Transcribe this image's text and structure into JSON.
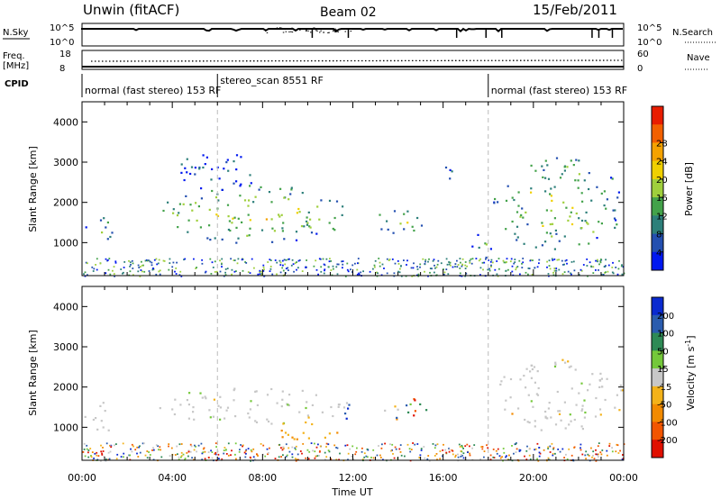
{
  "header": {
    "station": "Unwin (fitACF)",
    "beam": "Beam 02",
    "date": "15/Feb/2011"
  },
  "top_panels": {
    "nsky_label": "N.Sky",
    "nsky_ticks": [
      "10^5",
      "10^0"
    ],
    "nsearch_label": "N.Search",
    "nsearch_ticks": [
      "10^5",
      "10^0"
    ],
    "freq_label": "Freq.",
    "freq_unit": "[MHz]",
    "freq_ticks": [
      "18",
      "8"
    ],
    "nave_label": "Nave",
    "nave_ticks": [
      "60",
      "0"
    ],
    "cpid_label": "CPID",
    "cpid_segments": [
      {
        "label": "normal (fast stereo) 153 RF",
        "start_h": 0,
        "end_h": 6
      },
      {
        "label": "stereo_scan 8551 RF",
        "start_h": 6,
        "end_h": 18
      },
      {
        "label": "normal (fast stereo) 153 RF",
        "start_h": 18,
        "end_h": 24
      }
    ]
  },
  "time_axis": {
    "label": "Time UT",
    "ticks": [
      "00:00",
      "04:00",
      "08:00",
      "12:00",
      "16:00",
      "20:00",
      "00:00"
    ]
  },
  "chart_data": [
    {
      "type": "heatmap",
      "name": "power",
      "xlabel": "Time UT",
      "ylabel": "Slant Range [km]",
      "xlim_hours": [
        0,
        24
      ],
      "ylim_km": [
        180,
        4500
      ],
      "yticks": [
        "1000",
        "2000",
        "3000",
        "4000"
      ],
      "colorbar": {
        "label": "Power [dB]",
        "ticks": [
          "4",
          "8",
          "12",
          "16",
          "20",
          "24",
          "28"
        ],
        "colors": [
          "#0018f0",
          "#234fb0",
          "#2d7f7a",
          "#43a24a",
          "#9fcf3c",
          "#f0d000",
          "#f4a200",
          "#f26000",
          "#e81d00"
        ]
      },
      "regions": [
        {
          "t": [
            0.1,
            1.5
          ],
          "r": [
            900,
            1650
          ],
          "level": 0.45
        },
        {
          "t": [
            3.3,
            11.8
          ],
          "r": [
            1000,
            2450
          ],
          "level": 0.62
        },
        {
          "t": [
            4.2,
            8.0
          ],
          "r": [
            2300,
            3300
          ],
          "level": 0.2
        },
        {
          "t": [
            12.8,
            15.2
          ],
          "r": [
            1250,
            1850
          ],
          "level": 0.6
        },
        {
          "t": [
            15.2,
            16.4
          ],
          "r": [
            2500,
            3000
          ],
          "level": 0.2
        },
        {
          "t": [
            17.2,
            18.3
          ],
          "r": [
            600,
            1250
          ],
          "level": 0.35
        },
        {
          "t": [
            18.2,
            24.0
          ],
          "r": [
            800,
            3150
          ],
          "level": 0.58
        }
      ]
    },
    {
      "type": "heatmap",
      "name": "velocity",
      "xlabel": "Time UT",
      "ylabel": "Slant Range [km]",
      "xlim_hours": [
        0,
        24
      ],
      "ylim_km": [
        180,
        4500
      ],
      "yticks": [
        "1000",
        "2000",
        "3000",
        "4000"
      ],
      "colorbar": {
        "label": "Velocity [m s^-1]",
        "ticks": [
          "200",
          "100",
          "50",
          "15",
          "-15",
          "-50",
          "-100",
          "-200"
        ],
        "colors": [
          "#0a2ad0",
          "#2a5cae",
          "#2e8a55",
          "#74c83a",
          "#c7c7c7",
          "#f3b21a",
          "#f28a00",
          "#f25500",
          "#e01000"
        ]
      },
      "regions": [
        {
          "t": [
            0.1,
            1.5
          ],
          "r": [
            900,
            1650
          ],
          "class": "grey"
        },
        {
          "t": [
            3.3,
            11.8
          ],
          "r": [
            1100,
            2000
          ],
          "class": "grey"
        },
        {
          "t": [
            8.3,
            11.4
          ],
          "r": [
            700,
            1200
          ],
          "class": "orange"
        },
        {
          "t": [
            11.6,
            12.0
          ],
          "r": [
            1100,
            1900
          ],
          "class": "blue"
        },
        {
          "t": [
            13.0,
            15.3
          ],
          "r": [
            1200,
            1800
          ],
          "class": "mixed"
        },
        {
          "t": [
            18.2,
            24.0
          ],
          "r": [
            900,
            2700
          ],
          "class": "grey"
        },
        {
          "t": [
            18.9,
            19.3
          ],
          "r": [
            800,
            1400
          ],
          "class": "orange"
        }
      ]
    }
  ]
}
